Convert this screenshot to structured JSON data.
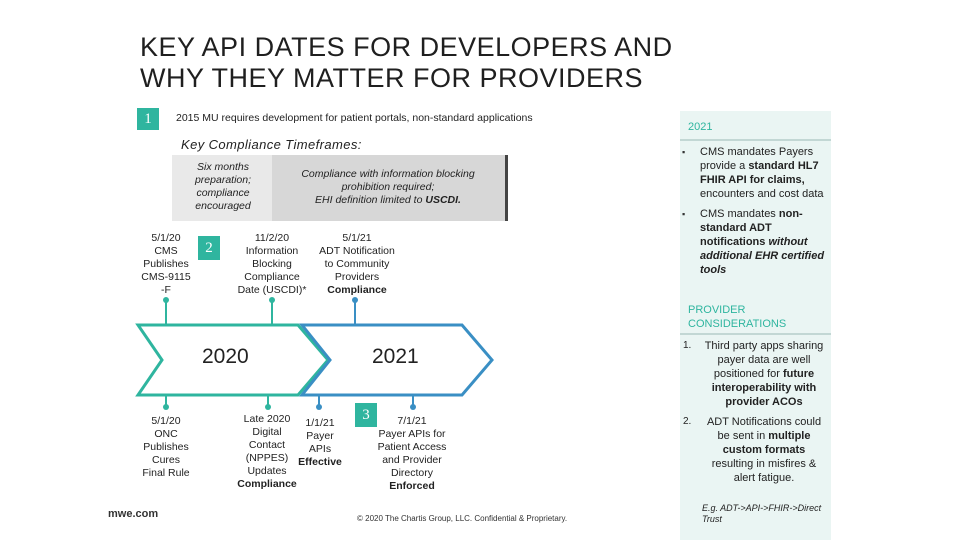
{
  "title": "KEY API DATES FOR DEVELOPERS AND\nWHY THEY MATTER FOR PROVIDERS",
  "badges": {
    "b1": "1",
    "b2": "2",
    "b3": "3"
  },
  "intro": "2015 MU requires development for patient portals, non-standard applications",
  "subheading": "Key Compliance Timeframes:",
  "gray_box": {
    "left": "Six months\npreparation;\ncompliance\nencouraged",
    "right_1": "Compliance with information blocking\nprohibition required;\nEHI definition limited to ",
    "right_uscdi": "USCDI."
  },
  "events_top": {
    "e1": "5/1/20\nCMS\nPublishes\nCMS-9115\n-F",
    "e2_text": "11/2/20\nInformation\nBlocking\nCompliance\nDate (USCDI)*",
    "e3_text": "5/1/21\nADT Notification\nto Community\nProviders",
    "e3_strong": "Compliance"
  },
  "years": {
    "y1": "2020",
    "y2": "2021"
  },
  "events_bottom": {
    "e1": "5/1/20\nONC\nPublishes\nCures\nFinal Rule",
    "e2_text": "Late 2020\nDigital\nContact\n(NPPES)\nUpdates",
    "e2_strong": "Compliance",
    "e3_text": "1/1/21\nPayer\nAPIs",
    "e3_strong": "Effective",
    "e4_text": "7/1/21\nPayer APIs for\nPatient Access\nand Provider\nDirectory",
    "e4_strong": "Enforced"
  },
  "footer": {
    "logo": "mwe.com",
    "copyright": "© 2020 The Chartis Group, LLC. Confidential & Proprietary."
  },
  "sidebar": {
    "heading_2021": "2021",
    "b1_pre": "CMS mandates Payers provide a ",
    "b1_strong": "standard HL7 FHIR API for claims,",
    "b1_post": " encounters and cost data",
    "b2_pre": "CMS mandates ",
    "b2_strong": "non-standard ADT notifications",
    "b2_ital": " without additional EHR certified tools",
    "heading_provider": "PROVIDER CONSIDERATIONS",
    "c1_num": "1.",
    "c1_pre": "Third party apps sharing payer data are well positioned for ",
    "c1_strong": "future interoperability with provider ACOs",
    "c2_num": "2.",
    "c2_pre": "ADT Notifications could be sent in ",
    "c2_strong": "multiple custom formats",
    "c2_post": " resulting in misfires & alert fatigue.",
    "example": "E.g. ADT->API->FHIR->Direct Trust"
  },
  "colors": {
    "teal": "#2fb59f",
    "blue": "#3a8fc4",
    "sidebar_bg": "#eaf5f3",
    "gray_box": "#d7d7d7"
  }
}
